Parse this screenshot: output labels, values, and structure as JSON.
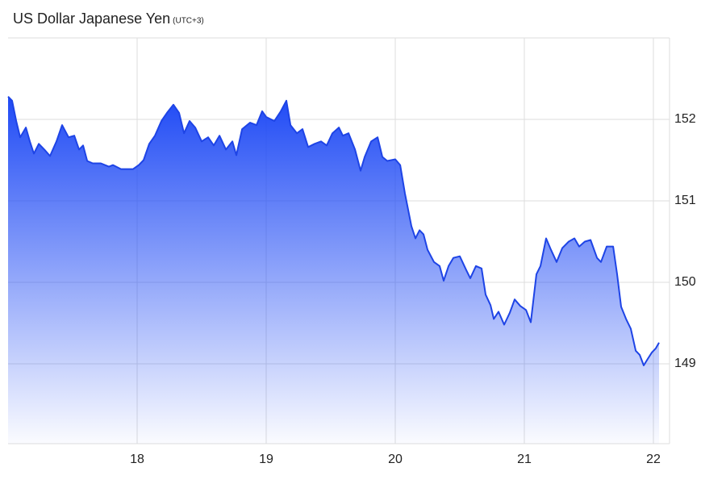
{
  "chart_data": {
    "type": "area",
    "title": "US Dollar Japanese Yen",
    "subtitle": "(UTC+3)",
    "color": "#1e44e6",
    "xlim": [
      17,
      22.125
    ],
    "xticks": [
      18,
      19,
      20,
      21,
      22
    ],
    "ylim": [
      148,
      153
    ],
    "yticks": [
      149,
      150,
      151,
      152
    ],
    "grid": true,
    "x": [
      17.0,
      17.031,
      17.063,
      17.094,
      17.138,
      17.169,
      17.2,
      17.238,
      17.281,
      17.325,
      17.375,
      17.419,
      17.469,
      17.513,
      17.55,
      17.581,
      17.613,
      17.656,
      17.719,
      17.781,
      17.813,
      17.875,
      17.969,
      18.013,
      18.05,
      18.094,
      18.138,
      18.188,
      18.231,
      18.281,
      18.325,
      18.363,
      18.406,
      18.45,
      18.5,
      18.55,
      18.594,
      18.638,
      18.688,
      18.738,
      18.769,
      18.813,
      18.875,
      18.925,
      18.969,
      19.0,
      19.063,
      19.113,
      19.156,
      19.188,
      19.238,
      19.281,
      19.325,
      19.375,
      19.425,
      19.469,
      19.513,
      19.563,
      19.594,
      19.638,
      19.688,
      19.731,
      19.763,
      19.813,
      19.863,
      19.9,
      19.938,
      20.0,
      20.038,
      20.075,
      20.125,
      20.156,
      20.188,
      20.219,
      20.25,
      20.3,
      20.344,
      20.375,
      20.413,
      20.45,
      20.5,
      20.55,
      20.581,
      20.625,
      20.669,
      20.7,
      20.738,
      20.763,
      20.8,
      20.844,
      20.888,
      20.925,
      20.969,
      21.013,
      21.05,
      21.094,
      21.125,
      21.169,
      21.206,
      21.25,
      21.294,
      21.344,
      21.388,
      21.425,
      21.469,
      21.513,
      21.563,
      21.594,
      21.638,
      21.688,
      21.719,
      21.75,
      21.788,
      21.825,
      21.863,
      21.894,
      21.925,
      21.956,
      21.988,
      22.019,
      22.044
    ],
    "values": [
      152.28,
      152.23,
      151.98,
      151.78,
      151.9,
      151.73,
      151.58,
      151.7,
      151.63,
      151.55,
      151.73,
      151.93,
      151.78,
      151.8,
      151.63,
      151.68,
      151.49,
      151.46,
      151.46,
      151.42,
      151.44,
      151.39,
      151.39,
      151.44,
      151.5,
      151.7,
      151.8,
      151.98,
      152.08,
      152.18,
      152.08,
      151.83,
      151.98,
      151.9,
      151.73,
      151.78,
      151.68,
      151.8,
      151.63,
      151.73,
      151.56,
      151.88,
      151.96,
      151.93,
      152.1,
      152.03,
      151.98,
      152.1,
      152.23,
      151.93,
      151.83,
      151.88,
      151.66,
      151.7,
      151.73,
      151.68,
      151.83,
      151.9,
      151.8,
      151.83,
      151.63,
      151.37,
      151.54,
      151.73,
      151.78,
      151.54,
      151.49,
      151.51,
      151.44,
      151.09,
      150.69,
      150.54,
      150.64,
      150.59,
      150.4,
      150.25,
      150.2,
      150.02,
      150.2,
      150.3,
      150.32,
      150.15,
      150.05,
      150.2,
      150.17,
      149.85,
      149.72,
      149.55,
      149.64,
      149.48,
      149.63,
      149.79,
      149.71,
      149.66,
      149.51,
      150.1,
      150.2,
      150.54,
      150.4,
      150.25,
      150.42,
      150.5,
      150.54,
      150.44,
      150.5,
      150.52,
      150.3,
      150.25,
      150.44,
      150.44,
      150.1,
      149.7,
      149.55,
      149.43,
      149.16,
      149.11,
      148.98,
      149.06,
      149.14,
      149.19,
      149.26
    ]
  }
}
